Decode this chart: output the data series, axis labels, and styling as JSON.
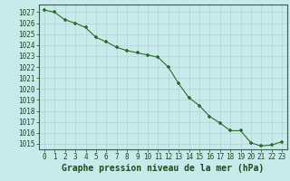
{
  "x": [
    0,
    1,
    2,
    3,
    4,
    5,
    6,
    7,
    8,
    9,
    10,
    11,
    12,
    13,
    14,
    15,
    16,
    17,
    18,
    19,
    20,
    21,
    22,
    23
  ],
  "y": [
    1027.2,
    1027.0,
    1026.3,
    1026.0,
    1025.6,
    1024.7,
    1024.3,
    1023.8,
    1023.5,
    1023.3,
    1023.1,
    1022.9,
    1022.0,
    1020.5,
    1019.2,
    1018.5,
    1017.5,
    1016.9,
    1016.2,
    1016.2,
    1015.1,
    1014.8,
    1014.9,
    1015.2
  ],
  "line_color": "#2d6a2d",
  "marker": "+",
  "marker_size": 3.5,
  "bg_color": "#c8eaea",
  "grid_color": "#aed4d4",
  "xlabel": "Graphe pression niveau de la mer (hPa)",
  "xlabel_color": "#1a4a1a",
  "tick_label_color": "#1a4a1a",
  "ylim": [
    1014.5,
    1027.7
  ],
  "xlim": [
    -0.5,
    23.5
  ],
  "yticks": [
    1015,
    1016,
    1017,
    1018,
    1019,
    1020,
    1021,
    1022,
    1023,
    1024,
    1025,
    1026,
    1027
  ],
  "xticks": [
    0,
    1,
    2,
    3,
    4,
    5,
    6,
    7,
    8,
    9,
    10,
    11,
    12,
    13,
    14,
    15,
    16,
    17,
    18,
    19,
    20,
    21,
    22,
    23
  ],
  "font_size": 5.5,
  "xlabel_font_size": 7.0,
  "spine_color": "#2d6a2d",
  "linewidth": 0.8,
  "marker_edge_width": 1.2
}
